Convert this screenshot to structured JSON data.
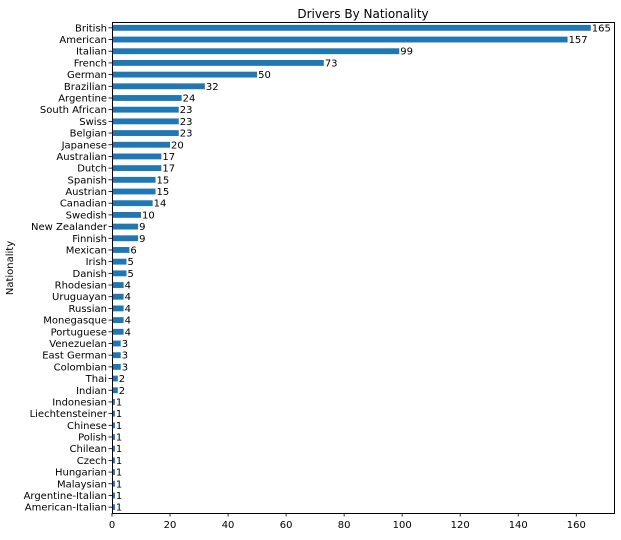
{
  "chart_data": {
    "type": "bar",
    "orientation": "horizontal",
    "title": "Drivers By Nationality",
    "xlabel": "",
    "ylabel": "Nationality",
    "xlim": [
      0,
      173
    ],
    "xticks": [
      0,
      20,
      40,
      60,
      80,
      100,
      120,
      140,
      160
    ],
    "grid": false,
    "bar_color": "#1f77b4",
    "categories": [
      "British",
      "American",
      "Italian",
      "French",
      "German",
      "Brazilian",
      "Argentine",
      "South African",
      "Swiss",
      "Belgian",
      "Japanese",
      "Australian",
      "Dutch",
      "Spanish",
      "Austrian",
      "Canadian",
      "Swedish",
      "New Zealander",
      "Finnish",
      "Mexican",
      "Irish",
      "Danish",
      "Rhodesian",
      "Uruguayan",
      "Russian",
      "Monegasque",
      "Portuguese",
      "Venezuelan",
      "East German",
      "Colombian",
      "Thai",
      "Indian",
      "Indonesian",
      "Liechtensteiner",
      "Chinese",
      "Polish",
      "Chilean",
      "Czech",
      "Hungarian",
      "Malaysian",
      "Argentine-Italian",
      "American-Italian"
    ],
    "values": [
      165,
      157,
      99,
      73,
      50,
      32,
      24,
      23,
      23,
      23,
      20,
      17,
      17,
      15,
      15,
      14,
      10,
      9,
      9,
      6,
      5,
      5,
      4,
      4,
      4,
      4,
      4,
      3,
      3,
      3,
      2,
      2,
      1,
      1,
      1,
      1,
      1,
      1,
      1,
      1,
      1,
      1
    ]
  }
}
